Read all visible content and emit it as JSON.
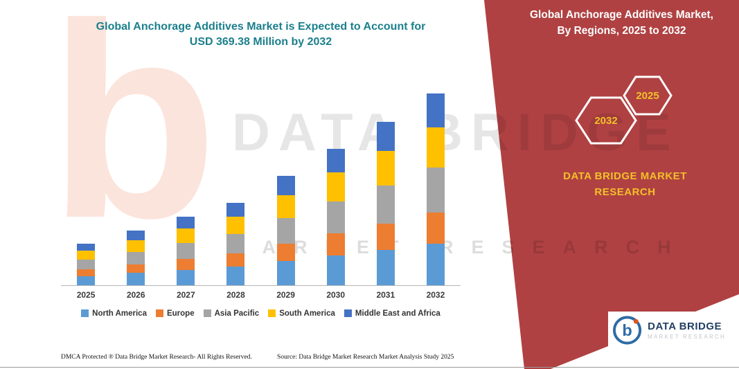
{
  "title": {
    "line1": "Global Anchorage Additives Market is Expected to Account for",
    "line2": "USD 369.38 Million by 2032"
  },
  "chart_data": {
    "type": "bar",
    "stacked": true,
    "title": "Global Anchorage Additives Market is Expected to Account for USD 369.38 Million by 2032",
    "categories": [
      "2025",
      "2026",
      "2027",
      "2028",
      "2029",
      "2030",
      "2031",
      "2032"
    ],
    "series": [
      {
        "name": "North America",
        "color": "#5B9BD5",
        "values": [
          17,
          23,
          29,
          35,
          46,
          57,
          68,
          80
        ]
      },
      {
        "name": "Europe",
        "color": "#ED7D31",
        "values": [
          13,
          17,
          21,
          26,
          34,
          43,
          51,
          60
        ]
      },
      {
        "name": "Asia Pacific",
        "color": "#A5A5A5",
        "values": [
          19,
          24,
          31,
          37,
          49,
          61,
          73,
          86
        ]
      },
      {
        "name": "South America",
        "color": "#FFC000",
        "values": [
          17,
          22,
          28,
          34,
          44,
          56,
          67,
          78
        ]
      },
      {
        "name": "Middle East and Africa",
        "color": "#4472C4",
        "values": [
          14,
          19,
          23,
          27,
          38,
          46,
          56,
          65.38
        ]
      }
    ],
    "totals": [
      80,
      105,
      132,
      159,
      211,
      263,
      315,
      369.38
    ],
    "unit": "USD Million",
    "ylim": [
      0,
      369.38
    ],
    "grid": false,
    "legend_position": "bottom",
    "xlabel": "",
    "ylabel": ""
  },
  "panel": {
    "heading_line1": "Global Anchorage Additives Market,",
    "heading_line2": "By Regions, 2025 to 2032",
    "hexagon_left_label": "2032",
    "hexagon_right_label": "2025",
    "brand_line1": "DATA BRIDGE MARKET",
    "brand_line2": "RESEARCH",
    "panel_color": "#B04142",
    "accent_color": "#F2C028"
  },
  "watermark": {
    "letter": "b",
    "line1": "DATA BRIDGE",
    "line2": "MARKET RESEARCH"
  },
  "logo": {
    "name": "DATA BRIDGE",
    "subtitle": "MARKET RESEARCH",
    "icon": "data-bridge-b-icon",
    "icon_color": "#2e6ca4"
  },
  "footer": {
    "dmca": "DMCA Protected ® Data Bridge Market Research-  All Rights Reserved.",
    "source": "Source: Data Bridge Market Research  Market Analysis Study 2025"
  }
}
